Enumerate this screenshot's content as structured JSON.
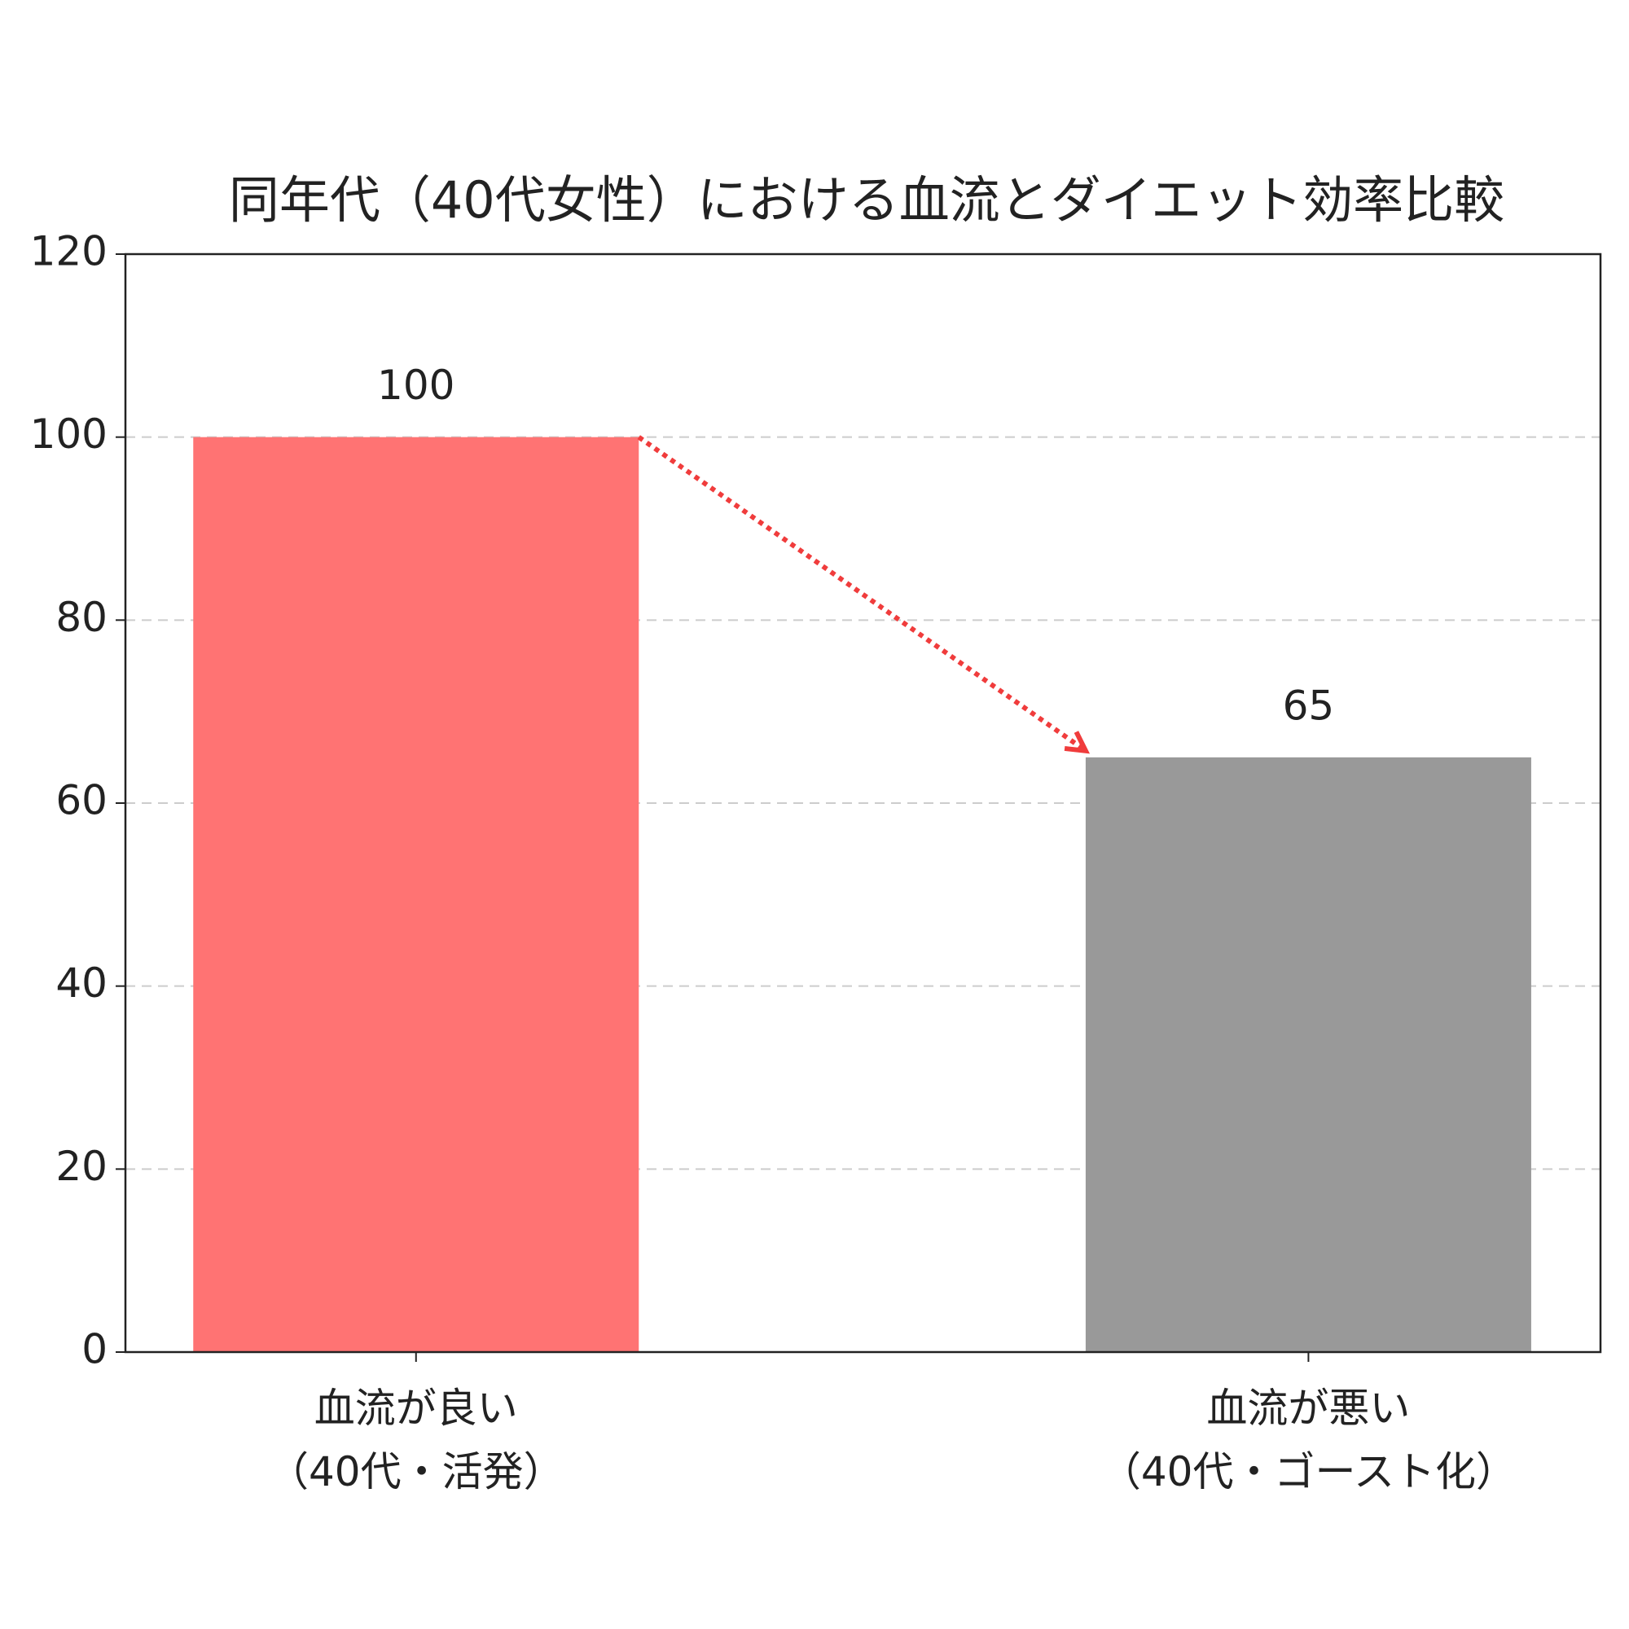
{
  "chart_data": {
    "type": "bar",
    "title": "同年代（40代女性）における血流とダイエット効率比較",
    "categories": [
      "血流が良い\n（40代・活発）",
      "血流が悪い\n（40代・ゴースト化）"
    ],
    "series": [
      {
        "name": null,
        "values": [
          100,
          65
        ],
        "colors": [
          "#ff7373",
          "#999999"
        ]
      }
    ],
    "ylim": [
      0,
      120
    ],
    "yticks": [
      0,
      20,
      40,
      60,
      80,
      100,
      120
    ],
    "grid": true
  }
}
